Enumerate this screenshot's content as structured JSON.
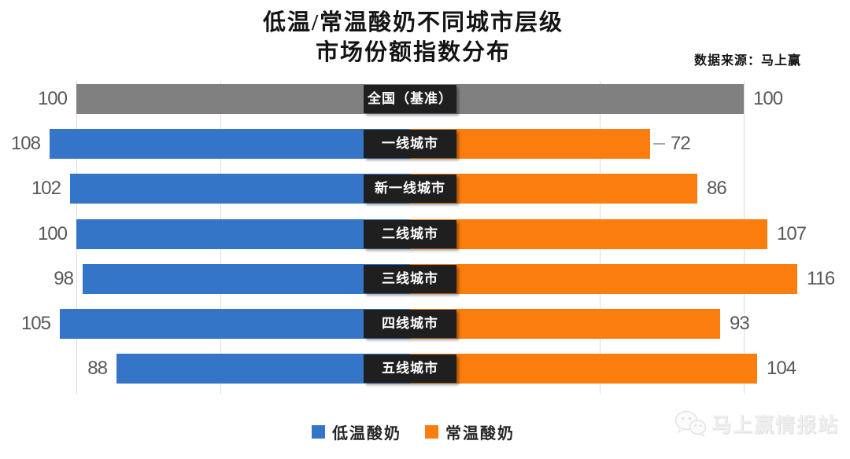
{
  "title": {
    "line1": "低温/常温酸奶不同城市层级",
    "line2": "市场份额指数分布"
  },
  "source_label": "数据来源：马上赢",
  "watermark_label": "马上赢情报站",
  "colors": {
    "low_temp_blue": "#3575C8",
    "room_temp_orange": "#FB7D0E",
    "baseline_gray": "#808080",
    "category_box_bg": "#1F1F1F",
    "category_box_text": "#FFFFFF",
    "value_text": "#595959",
    "gridline": "#DCDCDC",
    "title_text": "#141414"
  },
  "legend": {
    "items": [
      {
        "label": "低温酸奶",
        "color": "#3575C8"
      },
      {
        "label": "常温酸奶",
        "color": "#FB7D0E"
      }
    ]
  },
  "chart_data": {
    "type": "bar",
    "variant": "diverging-horizontal-tornado",
    "title": "低温/常温酸奶不同城市层级市场份额指数分布",
    "source": "数据来源：马上赢",
    "categories": [
      "全国（基准）",
      "一线城市",
      "新一线城市",
      "二线城市",
      "三线城市",
      "四线城市",
      "五线城市"
    ],
    "series": [
      {
        "name": "低温酸奶",
        "side": "left",
        "color": "#3575C8",
        "values": [
          100,
          108,
          102,
          100,
          98,
          105,
          88
        ]
      },
      {
        "name": "常温酸奶",
        "side": "right",
        "color": "#FB7D0E",
        "values": [
          100,
          72,
          86,
          107,
          116,
          93,
          104
        ]
      }
    ],
    "baseline_category": "全国（基准）",
    "baseline_value": 100,
    "baseline_color": "#808080",
    "value_labels": "outside-bar-ends",
    "category_labels": "center-black-boxes",
    "legend_position": "bottom-center",
    "grid": "faint-vertical-lines"
  }
}
